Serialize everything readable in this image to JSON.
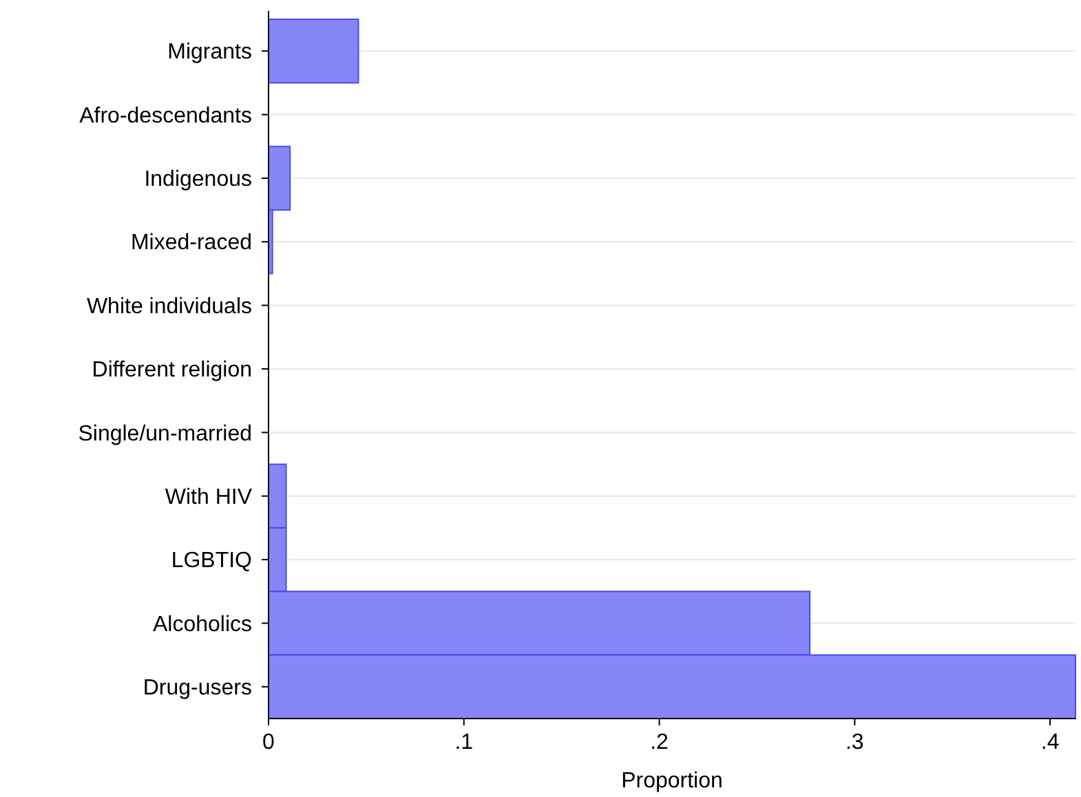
{
  "chart_data": {
    "type": "bar",
    "orientation": "horizontal",
    "xlabel": "Proportion",
    "categories": [
      "Migrants",
      "Afro-descendants",
      "Indigenous",
      "Mixed-raced",
      "White individuals",
      "Different religion",
      "Single/un-married",
      "With HIV",
      "LGBTIQ",
      "Alcoholics",
      "Drug-users"
    ],
    "values": [
      0.046,
      0,
      0.011,
      0.002,
      0,
      0,
      0,
      0.009,
      0.009,
      0.277,
      0.413
    ],
    "color": "#8080f8",
    "xlim": [
      0,
      0.413
    ],
    "xticks": [
      0,
      {
        "value": 0.1,
        "label": ".1"
      },
      {
        "value": 0.2,
        "label": ".2"
      },
      {
        "value": 0.3,
        "label": ".3"
      },
      {
        "value": 0.4,
        "label": ".4"
      }
    ],
    "grid": "y"
  }
}
